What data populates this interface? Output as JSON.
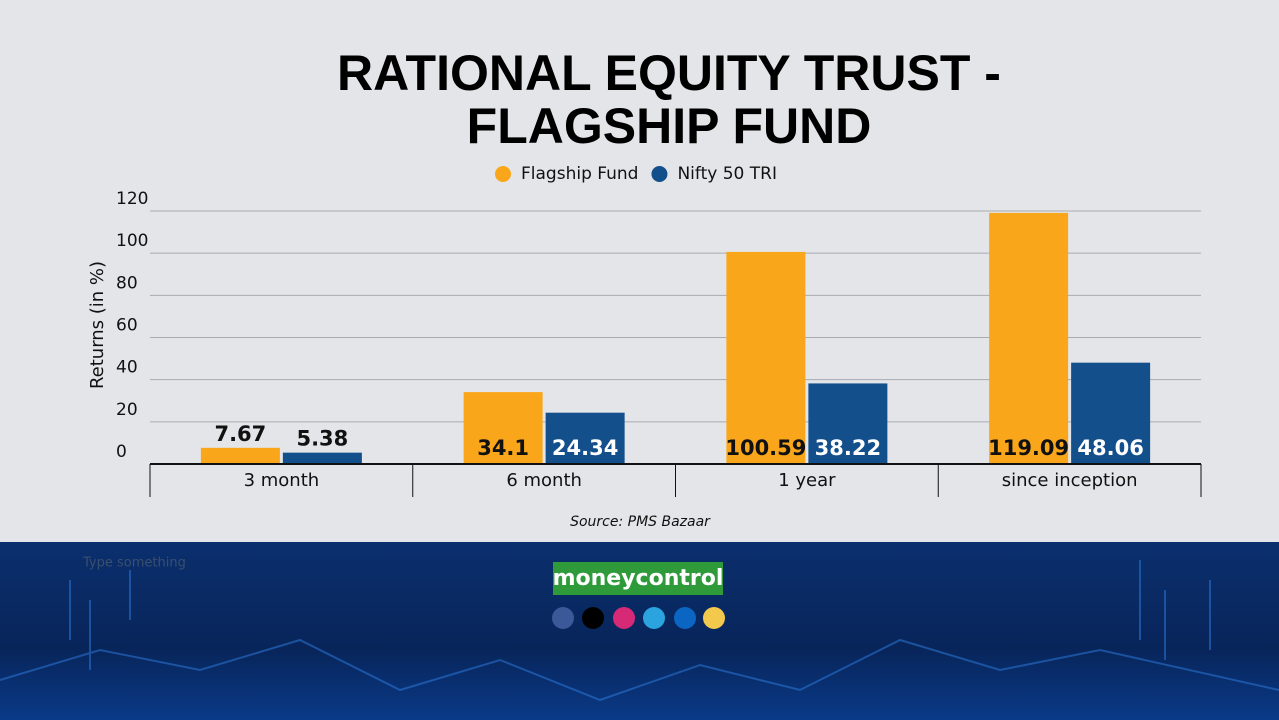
{
  "chart_data": {
    "type": "bar",
    "title": [
      "RATIONAL EQUITY TRUST -",
      "FLAGSHIP FUND"
    ],
    "y_label": "Returns (in %)",
    "source": "Source: PMS Bazaar",
    "categories": [
      "3 month",
      "6 month",
      "1 year",
      "since inception"
    ],
    "series": [
      {
        "name": "Flagship Fund",
        "color": "#faa61a",
        "label_color": "#111111",
        "values": [
          7.67,
          34.1,
          100.59,
          119.09
        ]
      },
      {
        "name": "Nifty 50 TRI",
        "color": "#134f8b",
        "label_color": "#ffffff",
        "values": [
          5.38,
          24.34,
          38.22,
          48.06
        ]
      }
    ],
    "ylim": [
      0,
      120
    ],
    "yticks": [
      0,
      20,
      40,
      60,
      80,
      100,
      120
    ],
    "grid": true,
    "legend": "top"
  },
  "footer": {
    "brand": "moneycontrol",
    "placeholder": "Type something"
  }
}
